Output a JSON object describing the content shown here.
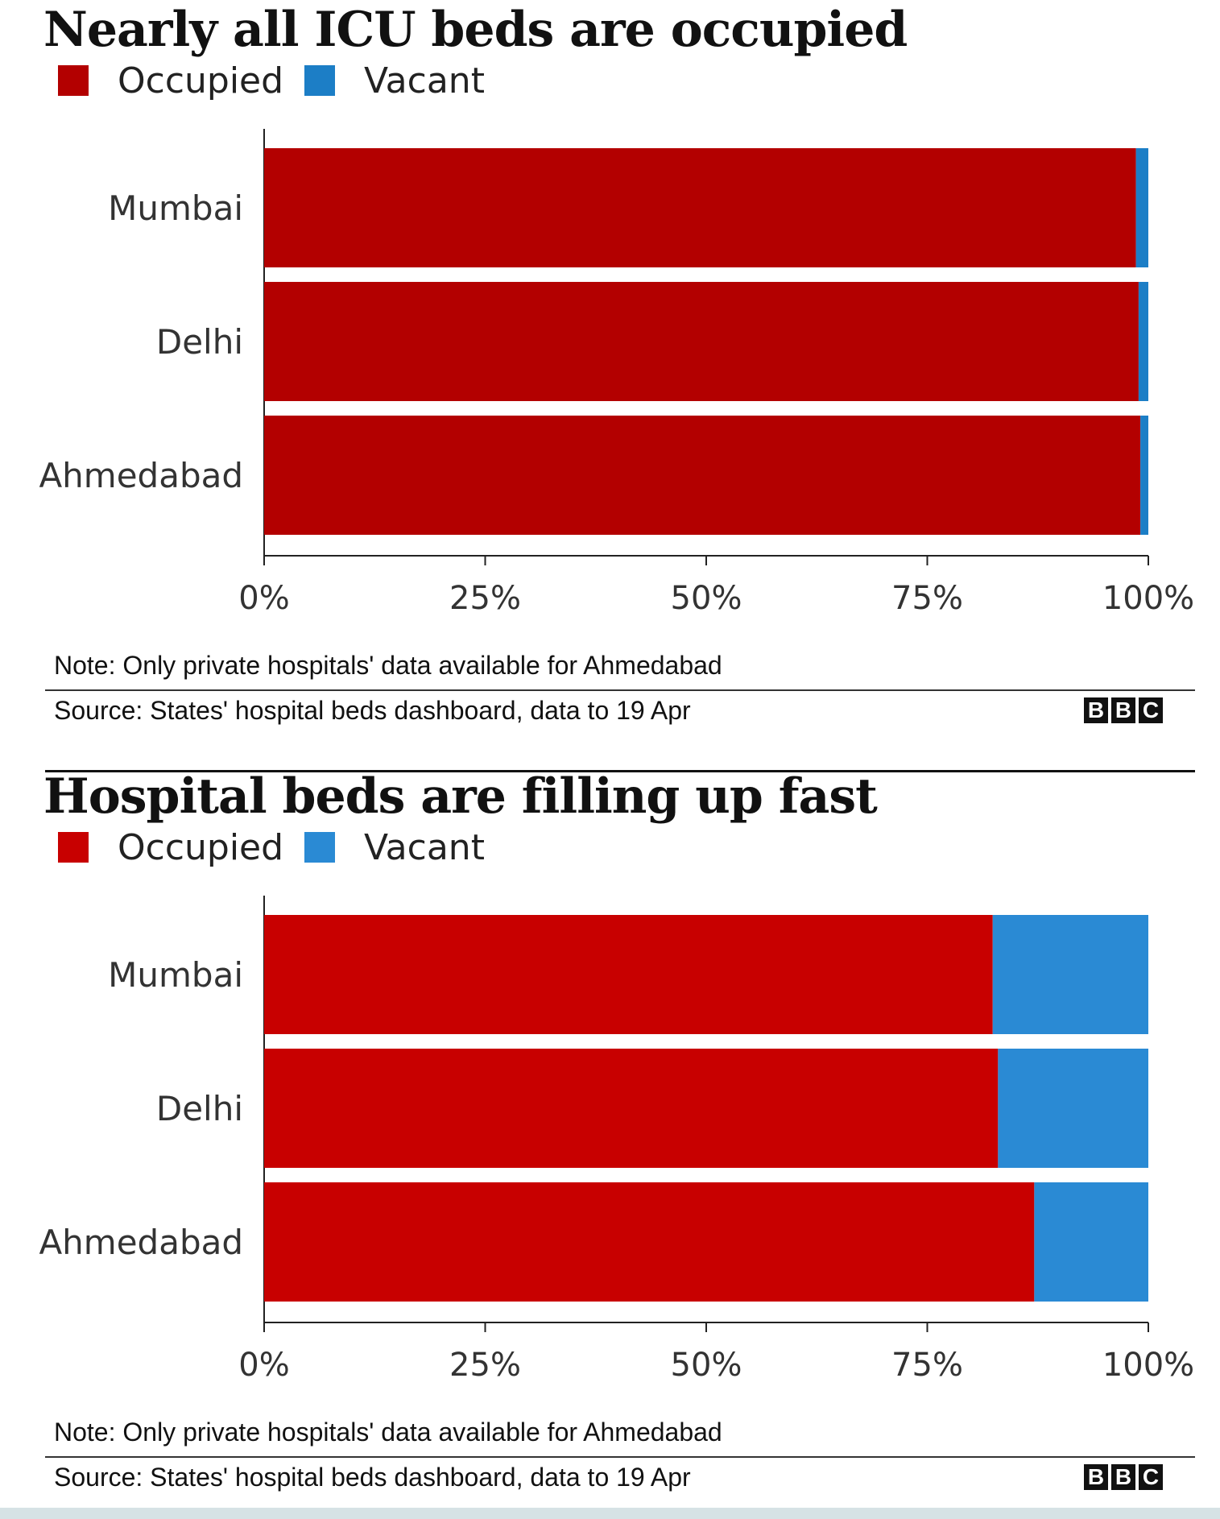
{
  "colors": {
    "occupied": "#b30000",
    "vacant": "#1c7ec6"
  },
  "panels": [
    {
      "title": "Nearly all ICU beds are occupied",
      "legend": [
        {
          "label": "Occupied",
          "color": "#b30000"
        },
        {
          "label": "Vacant",
          "color": "#1c7ec6"
        }
      ],
      "note": "Note: Only private hospitals' data available for Ahmedabad",
      "source": "Source: States' hospital beds dashboard, data to 19 Apr",
      "logo": [
        "B",
        "B",
        "C"
      ]
    },
    {
      "title": "Hospital beds are filling up fast",
      "legend": [
        {
          "label": "Occupied",
          "color": "#c80000"
        },
        {
          "label": "Vacant",
          "color": "#2a8ad4"
        }
      ],
      "note": "Note: Only private hospitals' data available for Ahmedabad",
      "source": "Source: States' hospital beds dashboard, data to 19 Apr",
      "logo": [
        "B",
        "B",
        "C"
      ]
    }
  ],
  "chart_data": [
    {
      "type": "bar",
      "orientation": "horizontal",
      "stacked": true,
      "title": "Nearly all ICU beds are occupied",
      "categories": [
        "Mumbai",
        "Delhi",
        "Ahmedabad"
      ],
      "series": [
        {
          "name": "Occupied",
          "values": [
            98.6,
            98.9,
            99.1
          ],
          "color": "#b30000"
        },
        {
          "name": "Vacant",
          "values": [
            1.4,
            1.1,
            0.9
          ],
          "color": "#1c7ec6"
        }
      ],
      "xlim": [
        0,
        100
      ],
      "xticks": [
        "0%",
        "25%",
        "50%",
        "75%",
        "100%"
      ],
      "xtick_values": [
        0,
        25,
        50,
        75,
        100
      ],
      "grid": false,
      "legend_position": "top-left"
    },
    {
      "type": "bar",
      "orientation": "horizontal",
      "stacked": true,
      "title": "Hospital beds are filling up fast",
      "categories": [
        "Mumbai",
        "Delhi",
        "Ahmedabad"
      ],
      "series": [
        {
          "name": "Occupied",
          "values": [
            82.4,
            83.0,
            87.1
          ],
          "color": "#c80000"
        },
        {
          "name": "Vacant",
          "values": [
            17.6,
            17.0,
            12.9
          ],
          "color": "#2a8ad4"
        }
      ],
      "xlim": [
        0,
        100
      ],
      "xticks": [
        "0%",
        "25%",
        "50%",
        "75%",
        "100%"
      ],
      "xtick_values": [
        0,
        25,
        50,
        75,
        100
      ],
      "grid": false,
      "legend_position": "top-left"
    }
  ]
}
